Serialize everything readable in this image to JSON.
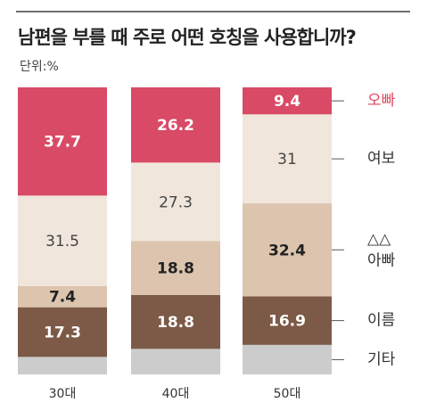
{
  "title": "남편을 부를 때 주로 어떤 호칭을 사용합니까?",
  "unit": "단위:%",
  "chart_data": {
    "type": "bar",
    "stacked": true,
    "percent": true,
    "categories": [
      "30대",
      "40대",
      "50대"
    ],
    "series": [
      {
        "name": "기타",
        "values": [
          null,
          null,
          null
        ],
        "color": "#cccccc",
        "text_color": "#ffffff"
      },
      {
        "name": "이름",
        "values": [
          17.3,
          18.8,
          16.9
        ],
        "color": "#7d5a47",
        "text_color": "#ffffff"
      },
      {
        "name": "△△ 아빠",
        "values": [
          7.4,
          18.8,
          32.4
        ],
        "color": "#dcc4ae",
        "text_color": "#222222"
      },
      {
        "name": "여보",
        "values": [
          31.5,
          27.3,
          31
        ],
        "color": "#f0e6db",
        "text_color": "#444444"
      },
      {
        "name": "오빠",
        "values": [
          37.7,
          26.2,
          9.4
        ],
        "color": "#d94a66",
        "text_color": "#ffffff"
      }
    ],
    "legend": {
      "placement": "right",
      "items": [
        {
          "lines": [
            "오빠"
          ],
          "color": "#e0465f"
        },
        {
          "lines": [
            "여보"
          ],
          "color": "#333333"
        },
        {
          "lines": [
            "△△",
            "아빠"
          ],
          "color": "#333333"
        },
        {
          "lines": [
            "이름"
          ],
          "color": "#333333"
        },
        {
          "lines": [
            "기타"
          ],
          "color": "#333333"
        }
      ]
    }
  }
}
